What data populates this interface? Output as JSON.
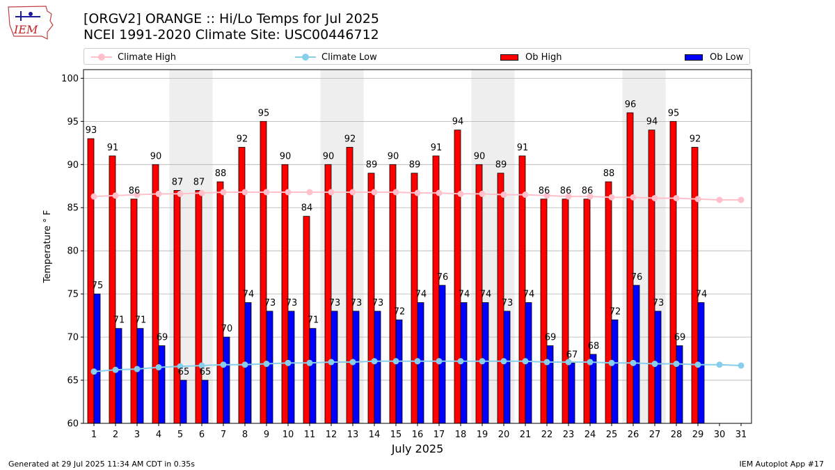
{
  "header": {
    "title_line1": "[ORGV2] ORANGE :: Hi/Lo Temps for Jul 2025",
    "title_line2": "NCEI 1991-2020 Climate Site: USC00446712",
    "logo_text": "IEM"
  },
  "legend": {
    "climate_high": "Climate High",
    "climate_low": "Climate Low",
    "ob_high": "Ob High",
    "ob_low": "Ob Low"
  },
  "footer": {
    "left": "Generated at 29 Jul 2025 11:34 AM CDT in 0.35s",
    "right": "IEM Autoplot App #17"
  },
  "colors": {
    "ob_high": "#ff0000",
    "ob_low": "#0000ff",
    "climate_high": "#ffc0cb",
    "climate_low": "#87ceeb",
    "weekend_shade": "#eeeeee",
    "grid": "#b0b0b0"
  },
  "chart_data": {
    "type": "bar",
    "xlabel": "July 2025",
    "ylabel": "Temperature ° F",
    "ylim": [
      60,
      101
    ],
    "yticks": [
      60,
      65,
      70,
      75,
      80,
      85,
      90,
      95,
      100
    ],
    "grid": "horizontal",
    "legend_position": "top",
    "categories": [
      "1",
      "2",
      "3",
      "4",
      "5",
      "6",
      "7",
      "8",
      "9",
      "10",
      "11",
      "12",
      "13",
      "14",
      "15",
      "16",
      "17",
      "18",
      "19",
      "20",
      "21",
      "22",
      "23",
      "24",
      "25",
      "26",
      "27",
      "28",
      "29",
      "30",
      "31"
    ],
    "shaded_days": [
      5,
      6,
      12,
      13,
      19,
      20,
      26,
      27
    ],
    "series": [
      {
        "name": "Ob High",
        "kind": "bar",
        "values": [
          93,
          91,
          86,
          90,
          87,
          87,
          88,
          92,
          95,
          90,
          84,
          90,
          92,
          89,
          90,
          89,
          91,
          94,
          90,
          89,
          91,
          86,
          86,
          86,
          88,
          96,
          94,
          95,
          92,
          null,
          null
        ]
      },
      {
        "name": "Ob Low",
        "kind": "bar",
        "values": [
          75,
          71,
          71,
          69,
          65,
          65,
          70,
          74,
          73,
          73,
          71,
          73,
          73,
          73,
          72,
          74,
          76,
          74,
          74,
          73,
          74,
          69,
          67,
          68,
          72,
          76,
          73,
          69,
          74,
          null,
          null
        ]
      },
      {
        "name": "Climate High",
        "kind": "line",
        "values": [
          86.3,
          86.4,
          86.5,
          86.6,
          86.6,
          86.7,
          86.8,
          86.8,
          86.8,
          86.8,
          86.8,
          86.8,
          86.8,
          86.8,
          86.8,
          86.7,
          86.7,
          86.6,
          86.6,
          86.5,
          86.5,
          86.4,
          86.3,
          86.3,
          86.2,
          86.2,
          86.1,
          86.1,
          86.0,
          85.9,
          85.9
        ]
      },
      {
        "name": "Climate Low",
        "kind": "line",
        "values": [
          66.0,
          66.2,
          66.3,
          66.5,
          66.6,
          66.7,
          66.8,
          66.8,
          66.9,
          67.0,
          67.0,
          67.1,
          67.1,
          67.2,
          67.2,
          67.2,
          67.2,
          67.2,
          67.2,
          67.2,
          67.2,
          67.1,
          67.1,
          67.1,
          67.0,
          67.0,
          66.9,
          66.9,
          66.8,
          66.8,
          66.7
        ]
      }
    ]
  }
}
